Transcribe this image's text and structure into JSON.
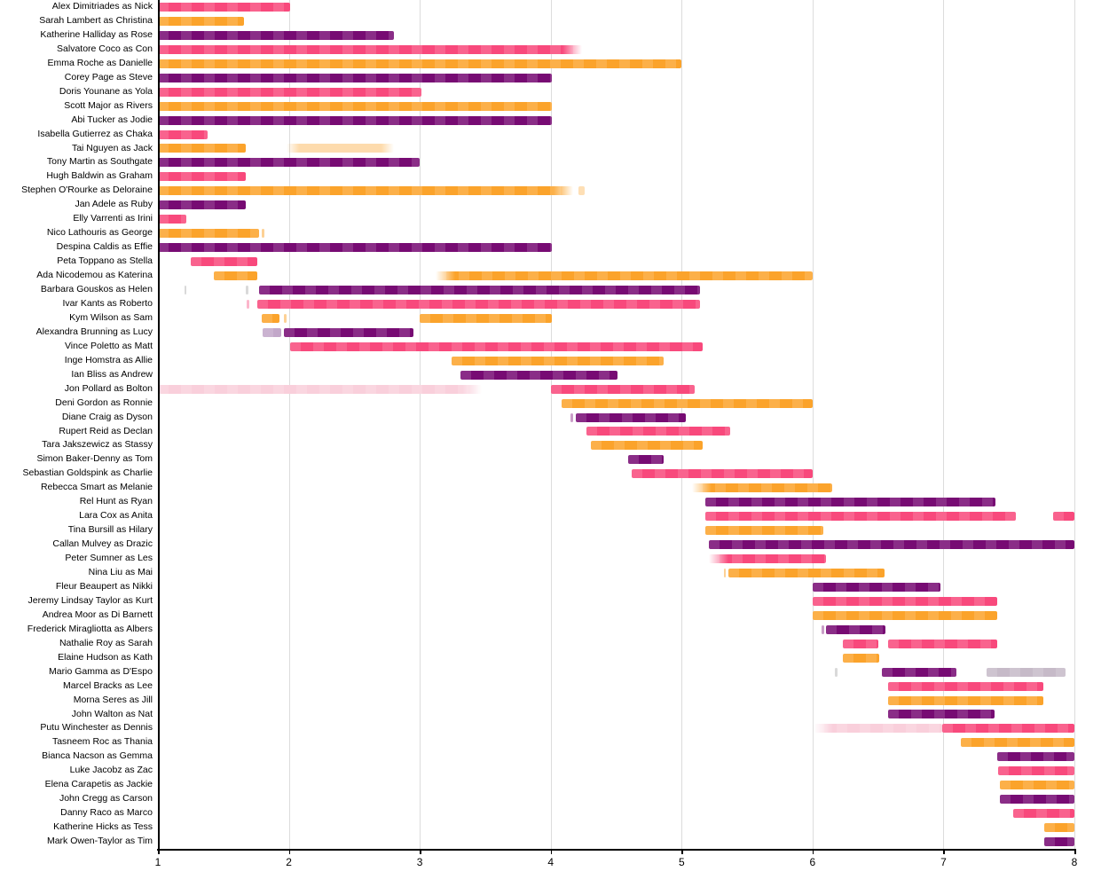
{
  "chart_data": {
    "type": "bar",
    "subtype": "horizontal-gantt-timeline",
    "title": "",
    "xlabel": "",
    "ylabel": "",
    "x_range": [
      1,
      8
    ],
    "x_ticks": [
      "1",
      "2",
      "3",
      "4",
      "5",
      "6",
      "7",
      "8"
    ],
    "grid": "vertical-light",
    "legend": "none",
    "palette": {
      "pink": "#F8497C",
      "orange": "#FBA32B",
      "purple": "#770B73",
      "lightpink": "#F9CFDB",
      "lavender": "#C2A7C9",
      "graylav": "#C6BAC8",
      "gray": "#D9D9D9"
    },
    "rows": [
      {
        "label": "Alex Dimitriades as Nick",
        "bars": [
          {
            "s": 1.0,
            "e": 2.01,
            "color": "pink"
          }
        ]
      },
      {
        "label": "Sarah Lambert as Christina",
        "bars": [
          {
            "s": 1.0,
            "e": 1.66,
            "color": "orange"
          }
        ]
      },
      {
        "label": "Katherine Halliday as Rose",
        "bars": [
          {
            "s": 1.0,
            "e": 2.8,
            "color": "purple"
          }
        ]
      },
      {
        "label": "Salvatore Coco as Con",
        "bars": [
          {
            "s": 1.0,
            "e": 4.24,
            "color": "pink",
            "fade": "r"
          }
        ]
      },
      {
        "label": "Emma Roche as Danielle",
        "bars": [
          {
            "s": 1.0,
            "e": 5.0,
            "color": "orange"
          }
        ]
      },
      {
        "label": "Corey Page as Steve",
        "bars": [
          {
            "s": 1.0,
            "e": 4.01,
            "color": "purple"
          }
        ]
      },
      {
        "label": "Doris Younane as Yola",
        "bars": [
          {
            "s": 1.0,
            "e": 3.01,
            "color": "pink"
          }
        ]
      },
      {
        "label": "Scott Major as Rivers",
        "bars": [
          {
            "s": 1.0,
            "e": 4.01,
            "color": "orange"
          }
        ]
      },
      {
        "label": "Abi Tucker as Jodie",
        "bars": [
          {
            "s": 1.0,
            "e": 4.01,
            "color": "purple"
          }
        ]
      },
      {
        "label": "Isabella Gutierrez as Chaka",
        "bars": [
          {
            "s": 1.0,
            "e": 1.38,
            "color": "pink"
          }
        ]
      },
      {
        "label": "Tai Nguyen as Jack",
        "bars": [
          {
            "s": 1.0,
            "e": 1.67,
            "color": "orange"
          },
          {
            "s": 1.98,
            "e": 2.8,
            "color": "orange",
            "opacity": 0.38,
            "fade": "lr"
          }
        ]
      },
      {
        "label": "Tony Martin as Southgate",
        "bars": [
          {
            "s": 1.0,
            "e": 3.0,
            "color": "purple"
          }
        ]
      },
      {
        "label": "Hugh Baldwin as Graham",
        "bars": [
          {
            "s": 1.0,
            "e": 1.67,
            "color": "pink"
          }
        ]
      },
      {
        "label": "Stephen O'Rourke as Deloraine",
        "bars": [
          {
            "s": 1.0,
            "e": 4.17,
            "color": "orange",
            "fade": "r"
          },
          {
            "s": 4.21,
            "e": 4.26,
            "color": "orange",
            "opacity": 0.35
          }
        ]
      },
      {
        "label": "Jan Adele as Ruby",
        "bars": [
          {
            "s": 1.0,
            "e": 1.67,
            "color": "purple"
          }
        ]
      },
      {
        "label": "Elly Varrenti as Irini",
        "bars": [
          {
            "s": 1.0,
            "e": 1.22,
            "color": "pink"
          }
        ]
      },
      {
        "label": "Nico Lathouris as George",
        "bars": [
          {
            "s": 1.0,
            "e": 1.77,
            "color": "orange"
          },
          {
            "s": 1.79,
            "e": 1.81,
            "color": "orange",
            "opacity": 0.5
          }
        ]
      },
      {
        "label": "Despina Caldis as Effie",
        "bars": [
          {
            "s": 1.0,
            "e": 4.01,
            "color": "purple"
          }
        ]
      },
      {
        "label": "Peta Toppano as Stella",
        "bars": [
          {
            "s": 1.25,
            "e": 1.76,
            "color": "pink"
          }
        ]
      },
      {
        "label": "Ada Nicodemou as Katerina",
        "bars": [
          {
            "s": 1.43,
            "e": 1.76,
            "color": "orange"
          },
          {
            "s": 3.12,
            "e": 6.0,
            "color": "orange",
            "fade": "l"
          }
        ]
      },
      {
        "label": "Barbara Gouskos as Helen",
        "bars": [
          {
            "s": 1.2,
            "e": 1.22,
            "color": "gray"
          },
          {
            "s": 1.67,
            "e": 1.69,
            "color": "gray"
          },
          {
            "s": 1.77,
            "e": 5.14,
            "color": "purple"
          }
        ]
      },
      {
        "label": "Ivar Kants as Roberto",
        "bars": [
          {
            "s": 1.68,
            "e": 1.7,
            "color": "pink",
            "opacity": 0.4
          },
          {
            "s": 1.76,
            "e": 5.14,
            "color": "pink"
          }
        ]
      },
      {
        "label": "Kym Wilson as Sam",
        "bars": [
          {
            "s": 1.79,
            "e": 1.93,
            "color": "orange"
          },
          {
            "s": 1.96,
            "e": 1.98,
            "color": "orange",
            "opacity": 0.5
          },
          {
            "s": 3.0,
            "e": 4.01,
            "color": "orange"
          }
        ]
      },
      {
        "label": "Alexandra Brunning as Lucy",
        "bars": [
          {
            "s": 1.8,
            "e": 1.94,
            "color": "lavender"
          },
          {
            "s": 1.96,
            "e": 2.95,
            "color": "purple"
          }
        ]
      },
      {
        "label": "Vince Poletto as Matt",
        "bars": [
          {
            "s": 2.01,
            "e": 5.16,
            "color": "pink"
          }
        ]
      },
      {
        "label": "Inge Homstra as Allie",
        "bars": [
          {
            "s": 3.24,
            "e": 4.86,
            "color": "orange"
          }
        ]
      },
      {
        "label": "Ian Bliss as Andrew",
        "bars": [
          {
            "s": 3.31,
            "e": 4.51,
            "color": "purple"
          }
        ]
      },
      {
        "label": "Jon Pollard as Bolton",
        "bars": [
          {
            "s": 1.0,
            "e": 3.47,
            "color": "lightpink",
            "fade": "r"
          },
          {
            "s": 4.0,
            "e": 5.1,
            "color": "pink"
          }
        ]
      },
      {
        "label": "Deni Gordon as Ronnie",
        "bars": [
          {
            "s": 4.08,
            "e": 6.0,
            "color": "orange"
          }
        ]
      },
      {
        "label": "Diane Craig as Dyson",
        "bars": [
          {
            "s": 4.15,
            "e": 4.17,
            "color": "purple",
            "opacity": 0.4
          },
          {
            "s": 4.19,
            "e": 5.03,
            "color": "purple"
          }
        ]
      },
      {
        "label": "Rupert Reid as Declan",
        "bars": [
          {
            "s": 4.27,
            "e": 5.37,
            "color": "pink"
          }
        ]
      },
      {
        "label": "Tara Jakszewicz as Stassy",
        "bars": [
          {
            "s": 4.31,
            "e": 5.16,
            "color": "orange"
          }
        ]
      },
      {
        "label": "Simon Baker-Denny as Tom",
        "bars": [
          {
            "s": 4.59,
            "e": 4.86,
            "color": "purple"
          }
        ]
      },
      {
        "label": "Sebastian Goldspink as Charlie",
        "bars": [
          {
            "s": 4.62,
            "e": 6.0,
            "color": "pink"
          }
        ]
      },
      {
        "label": "Rebecca Smart as Melanie",
        "bars": [
          {
            "s": 5.08,
            "e": 6.15,
            "color": "orange",
            "fade": "l"
          }
        ]
      },
      {
        "label": "Rel Hunt as Ryan",
        "bars": [
          {
            "s": 5.18,
            "e": 7.4,
            "color": "purple"
          }
        ]
      },
      {
        "label": "Lara Cox as Anita",
        "bars": [
          {
            "s": 5.18,
            "e": 7.55,
            "color": "pink"
          },
          {
            "s": 7.84,
            "e": 8.0,
            "color": "pink"
          }
        ]
      },
      {
        "label": "Tina Bursill as Hilary",
        "bars": [
          {
            "s": 5.18,
            "e": 6.08,
            "color": "orange"
          }
        ]
      },
      {
        "label": "Callan Mulvey as Drazic",
        "bars": [
          {
            "s": 5.21,
            "e": 8.0,
            "color": "purple"
          }
        ]
      },
      {
        "label": "Peter Sumner as Les",
        "bars": [
          {
            "s": 5.21,
            "e": 6.1,
            "color": "pink",
            "fade": "l"
          }
        ]
      },
      {
        "label": "Nina Liu as Mai",
        "bars": [
          {
            "s": 5.32,
            "e": 5.34,
            "color": "orange",
            "opacity": 0.5
          },
          {
            "s": 5.36,
            "e": 6.55,
            "color": "orange"
          }
        ]
      },
      {
        "label": "Fleur Beaupert as Nikki",
        "bars": [
          {
            "s": 6.0,
            "e": 6.98,
            "color": "purple"
          }
        ]
      },
      {
        "label": "Jeremy Lindsay Taylor as Kurt",
        "bars": [
          {
            "s": 6.0,
            "e": 7.41,
            "color": "pink"
          }
        ]
      },
      {
        "label": "Andrea Moor as Di Barnett",
        "bars": [
          {
            "s": 6.0,
            "e": 7.41,
            "color": "orange"
          }
        ]
      },
      {
        "label": "Frederick Miragliotta as Albers",
        "bars": [
          {
            "s": 6.07,
            "e": 6.09,
            "color": "purple",
            "opacity": 0.4
          },
          {
            "s": 6.1,
            "e": 6.56,
            "color": "purple"
          }
        ]
      },
      {
        "label": "Nathalie Roy as Sarah",
        "bars": [
          {
            "s": 6.23,
            "e": 6.5,
            "color": "pink"
          },
          {
            "s": 6.58,
            "e": 7.41,
            "color": "pink"
          }
        ]
      },
      {
        "label": "Elaine Hudson as Kath",
        "bars": [
          {
            "s": 6.23,
            "e": 6.51,
            "color": "orange"
          }
        ]
      },
      {
        "label": "Mario Gamma as D'Espo",
        "bars": [
          {
            "s": 6.17,
            "e": 6.19,
            "color": "gray"
          },
          {
            "s": 6.53,
            "e": 7.1,
            "color": "purple"
          },
          {
            "s": 7.33,
            "e": 7.93,
            "color": "graylav"
          }
        ]
      },
      {
        "label": "Marcel Bracks as Lee",
        "bars": [
          {
            "s": 6.58,
            "e": 7.76,
            "color": "pink"
          }
        ]
      },
      {
        "label": "Morna Seres as Jill",
        "bars": [
          {
            "s": 6.58,
            "e": 7.76,
            "color": "orange"
          }
        ]
      },
      {
        "label": "John Walton as Nat",
        "bars": [
          {
            "s": 6.58,
            "e": 7.39,
            "color": "purple"
          }
        ]
      },
      {
        "label": "Putu Winchester as Dennis",
        "bars": [
          {
            "s": 6.01,
            "e": 6.99,
            "color": "lightpink",
            "fade": "l"
          },
          {
            "s": 6.99,
            "e": 8.0,
            "color": "pink"
          }
        ]
      },
      {
        "label": "Tasneem Roc as Thania",
        "bars": [
          {
            "s": 7.13,
            "e": 8.0,
            "color": "orange"
          }
        ]
      },
      {
        "label": "Bianca Nacson as Gemma",
        "bars": [
          {
            "s": 7.41,
            "e": 8.0,
            "color": "purple"
          }
        ]
      },
      {
        "label": "Luke Jacobz as Zac",
        "bars": [
          {
            "s": 7.42,
            "e": 8.0,
            "color": "pink"
          }
        ]
      },
      {
        "label": "Elena Carapetis as Jackie",
        "bars": [
          {
            "s": 7.43,
            "e": 8.0,
            "color": "orange"
          }
        ]
      },
      {
        "label": "John Cregg as Carson",
        "bars": [
          {
            "s": 7.43,
            "e": 8.0,
            "color": "purple"
          }
        ]
      },
      {
        "label": "Danny Raco as Marco",
        "bars": [
          {
            "s": 7.53,
            "e": 8.0,
            "color": "pink"
          }
        ]
      },
      {
        "label": "Katherine Hicks as Tess",
        "bars": [
          {
            "s": 7.77,
            "e": 8.0,
            "color": "orange"
          }
        ]
      },
      {
        "label": "Mark Owen-Taylor as Tim",
        "bars": [
          {
            "s": 7.77,
            "e": 8.0,
            "color": "purple"
          }
        ]
      }
    ]
  }
}
